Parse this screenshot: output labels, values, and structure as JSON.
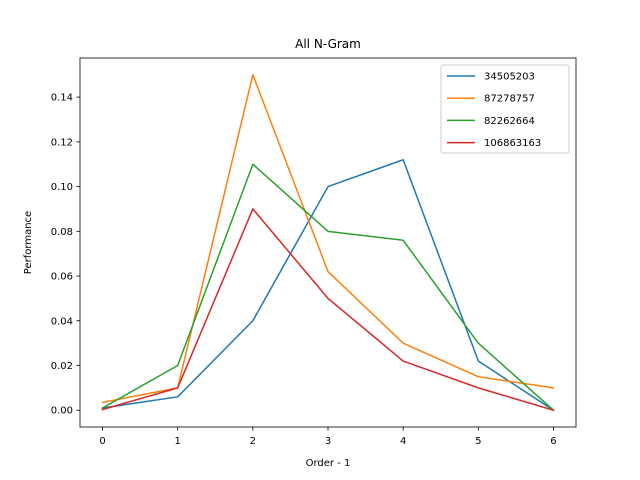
{
  "chart_data": {
    "type": "line",
    "title": "All N-Gram",
    "xlabel": "Order - 1",
    "ylabel": "Performance",
    "x": [
      0,
      1,
      2,
      3,
      4,
      5,
      6
    ],
    "xlim": [
      -0.3,
      6.3
    ],
    "ylim": [
      -0.0075,
      0.1575
    ],
    "xticks": [
      0,
      1,
      2,
      3,
      4,
      5,
      6
    ],
    "yticks": [
      0.0,
      0.02,
      0.04,
      0.06,
      0.08,
      0.1,
      0.12,
      0.14
    ],
    "ytick_labels": [
      "0.00",
      "0.02",
      "0.04",
      "0.06",
      "0.08",
      "0.10",
      "0.12",
      "0.14"
    ],
    "grid": false,
    "legend_position": "top-right",
    "series": [
      {
        "name": "34505203",
        "color": "#1f77b4",
        "values": [
          0.001,
          0.006,
          0.04,
          0.1,
          0.112,
          0.022,
          0.0
        ]
      },
      {
        "name": "87278757",
        "color": "#ff7f0e",
        "values": [
          0.0035,
          0.01,
          0.15,
          0.062,
          0.03,
          0.015,
          0.01
        ]
      },
      {
        "name": "82262664",
        "color": "#2ca02c",
        "values": [
          0.001,
          0.02,
          0.11,
          0.08,
          0.076,
          0.03,
          0.0
        ]
      },
      {
        "name": "106863163",
        "color": "#d62728",
        "values": [
          0.0003,
          0.01,
          0.09,
          0.05,
          0.022,
          0.01,
          0.0
        ]
      }
    ]
  }
}
